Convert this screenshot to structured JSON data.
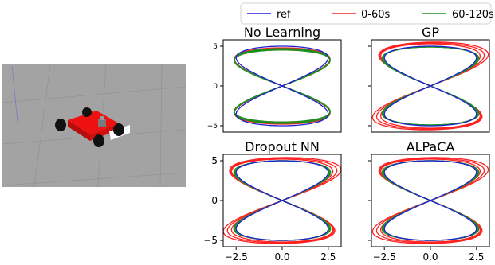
{
  "scene": {
    "description_icon": "robot-car-simulation-image"
  },
  "chart_data": [
    {
      "type": "line",
      "title": "No Learning",
      "xlim": [
        -3.2,
        3.2
      ],
      "ylim": [
        -5.8,
        5.8
      ],
      "yticks": [
        -5,
        0,
        5
      ],
      "xticks": [],
      "series": [
        {
          "name": "ref",
          "color": "#1f1fd6",
          "curve": "figure-eight",
          "amp_x": 2.5,
          "amp_y": 5.0,
          "variation": "none"
        },
        {
          "name": "0-60s",
          "color": "#ff2020",
          "curve": "figure-eight",
          "amp_x": 2.6,
          "amp_y": 4.8,
          "variation": "narrow-top"
        },
        {
          "name": "60-120s",
          "color": "#1f8f1f",
          "curve": "figure-eight",
          "amp_x": 2.6,
          "amp_y": 4.7,
          "variation": "narrow-top"
        }
      ]
    },
    {
      "type": "line",
      "title": "GP",
      "xlim": [
        -3.2,
        3.2
      ],
      "ylim": [
        -5.8,
        5.8
      ],
      "yticks": [],
      "xticks": [],
      "series": [
        {
          "name": "ref",
          "color": "#1f1fd6",
          "curve": "figure-eight",
          "amp_x": 2.5,
          "amp_y": 5.0,
          "variation": "none"
        },
        {
          "name": "0-60s",
          "color": "#ff2020",
          "curve": "figure-eight",
          "amp_x": 2.7,
          "amp_y": 5.3,
          "variation": "spread"
        },
        {
          "name": "60-120s",
          "color": "#1f8f1f",
          "curve": "figure-eight",
          "amp_x": 2.55,
          "amp_y": 4.9,
          "variation": "slight"
        }
      ]
    },
    {
      "type": "line",
      "title": "Dropout NN",
      "xlim": [
        -3.2,
        3.2
      ],
      "ylim": [
        -5.8,
        5.8
      ],
      "yticks": [
        -5,
        0,
        5
      ],
      "xticks": [
        -2.5,
        0.0,
        2.5
      ],
      "series": [
        {
          "name": "ref",
          "color": "#1f1fd6",
          "curve": "figure-eight",
          "amp_x": 2.5,
          "amp_y": 5.0,
          "variation": "none"
        },
        {
          "name": "0-60s",
          "color": "#ff2020",
          "curve": "figure-eight",
          "amp_x": 2.75,
          "amp_y": 5.2,
          "variation": "spread"
        },
        {
          "name": "60-120s",
          "color": "#1f8f1f",
          "curve": "figure-eight",
          "amp_x": 2.55,
          "amp_y": 5.0,
          "variation": "slight"
        }
      ]
    },
    {
      "type": "line",
      "title": "ALPaCA",
      "xlim": [
        -3.2,
        3.2
      ],
      "ylim": [
        -5.8,
        5.8
      ],
      "yticks": [],
      "xticks": [
        -2.5,
        0.0,
        2.5
      ],
      "series": [
        {
          "name": "ref",
          "color": "#1f1fd6",
          "curve": "figure-eight",
          "amp_x": 2.5,
          "amp_y": 5.0,
          "variation": "none"
        },
        {
          "name": "0-60s",
          "color": "#ff2020",
          "curve": "figure-eight",
          "amp_x": 2.7,
          "amp_y": 5.2,
          "variation": "spread"
        },
        {
          "name": "60-120s",
          "color": "#1f8f1f",
          "curve": "figure-eight",
          "amp_x": 2.55,
          "amp_y": 5.0,
          "variation": "slight"
        }
      ]
    }
  ],
  "legend": {
    "placement": "top-center",
    "entries": [
      {
        "label": "ref",
        "color": "#1f1fd6"
      },
      {
        "label": "0-60s",
        "color": "#ff2020"
      },
      {
        "label": "60-120s",
        "color": "#1f8f1f"
      }
    ]
  }
}
